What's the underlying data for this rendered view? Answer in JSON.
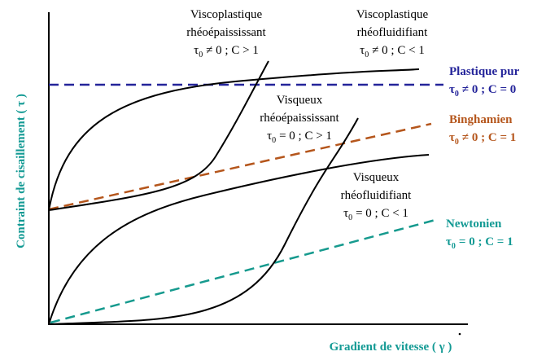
{
  "axes": {
    "y_label": "Contraint de cisaillement ( τ )",
    "x_label": "Gradient de vitesse ( γ )"
  },
  "curve_labels": [
    {
      "lines": [
        "Viscoplastique",
        "rhéoépaississant",
        {
          "symbol": "τ",
          "subscript": "0",
          "condition": "≠ 0 ; C > 1"
        }
      ]
    },
    {
      "lines": [
        "Viscoplastique",
        "rhéofluidifiant",
        {
          "symbol": "τ",
          "subscript": "0",
          "condition": "≠ 0 ; C < 1"
        }
      ]
    },
    {
      "lines": [
        "Visqueux",
        "rhéoépaississant",
        {
          "symbol": "τ",
          "subscript": "0",
          "condition": "= 0 ; C > 1"
        }
      ]
    },
    {
      "lines": [
        "Visqueux",
        "rhéofluidifiant",
        {
          "symbol": "τ",
          "subscript": "0",
          "condition": "= 0 ; C < 1"
        }
      ]
    },
    {
      "lines": [
        "Plastique pur",
        {
          "symbol": "τ",
          "subscript": "0",
          "condition": "≠ 0 ; C = 0"
        }
      ]
    },
    {
      "lines": [
        "Binghamien",
        {
          "symbol": "τ",
          "subscript": "0",
          "condition": "≠ 0 ; C = 1"
        }
      ]
    },
    {
      "lines": [
        "Newtonien",
        {
          "symbol": "τ",
          "subscript": "0",
          "condition": "= 0 ; C = 1"
        }
      ]
    }
  ]
}
